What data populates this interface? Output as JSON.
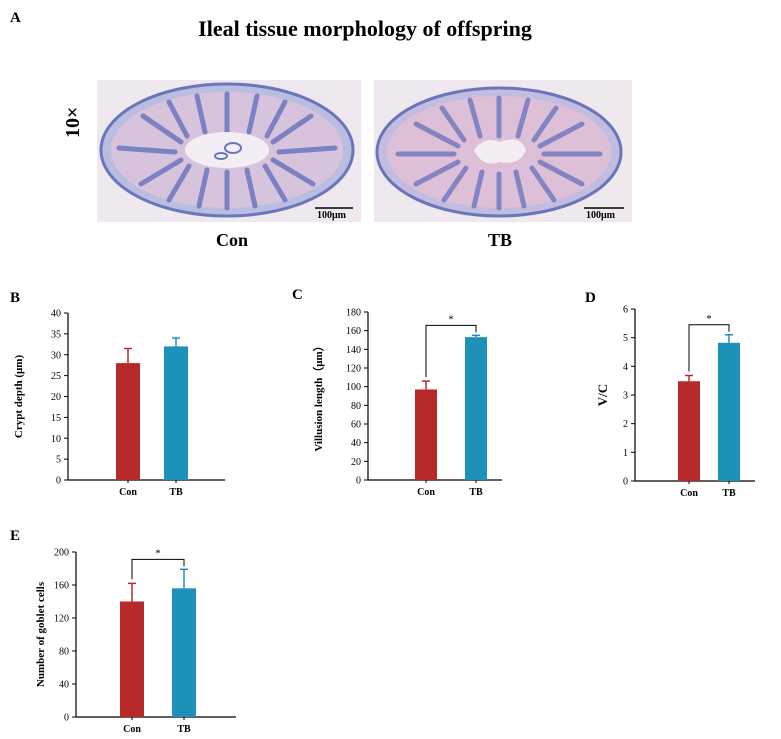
{
  "panel_labels": {
    "a": "A",
    "b": "B",
    "c": "C",
    "d": "D",
    "e": "E"
  },
  "top_panel": {
    "title": "Ileal tissue morphology of offspring",
    "magnification": "10×",
    "images": [
      {
        "caption": "Con",
        "scale_bar": "100μm"
      },
      {
        "caption": "TB",
        "scale_bar": "100μm"
      }
    ]
  },
  "colors": {
    "con": "#b82a2a",
    "tb": "#1d91b7",
    "stain": "#5a6fb8",
    "stain_light": "#c8b4d8",
    "tissue_bg": "#ece4ec"
  },
  "chart_data": [
    {
      "type": "bar",
      "categories": [
        "Con",
        "TB"
      ],
      "values": [
        28,
        32
      ],
      "errors": [
        3.5,
        2
      ],
      "ylabel": "Crypt depth (μm)",
      "ylim": [
        0,
        40
      ],
      "yticks": [
        "0",
        "5",
        "10",
        "15",
        "20",
        "25",
        "30",
        "35",
        "40"
      ],
      "significance": ""
    },
    {
      "type": "bar",
      "categories": [
        "Con",
        "TB"
      ],
      "values": [
        97,
        153
      ],
      "errors": [
        9,
        2
      ],
      "ylabel": "Villusion length（μm）",
      "ylim": [
        0,
        180
      ],
      "yticks": [
        "0",
        "20",
        "40",
        "60",
        "80",
        "100",
        "120",
        "140",
        "160",
        "180"
      ],
      "significance": "*"
    },
    {
      "type": "bar",
      "categories": [
        "Con",
        "TB"
      ],
      "values": [
        3.48,
        4.82
      ],
      "errors": [
        0.2,
        0.28
      ],
      "ylabel": "V/C",
      "ylim": [
        0,
        6
      ],
      "yticks": [
        "0",
        "1",
        "2",
        "3",
        "4",
        "5",
        "6"
      ],
      "significance": "*"
    },
    {
      "type": "bar",
      "categories": [
        "Con",
        "TB"
      ],
      "values": [
        140,
        156
      ],
      "errors": [
        22,
        23
      ],
      "ylabel": "Number of goblet cells",
      "ylim": [
        0,
        200
      ],
      "yticks": [
        "0",
        "40",
        "80",
        "120",
        "160",
        "200"
      ],
      "significance": "*"
    }
  ]
}
